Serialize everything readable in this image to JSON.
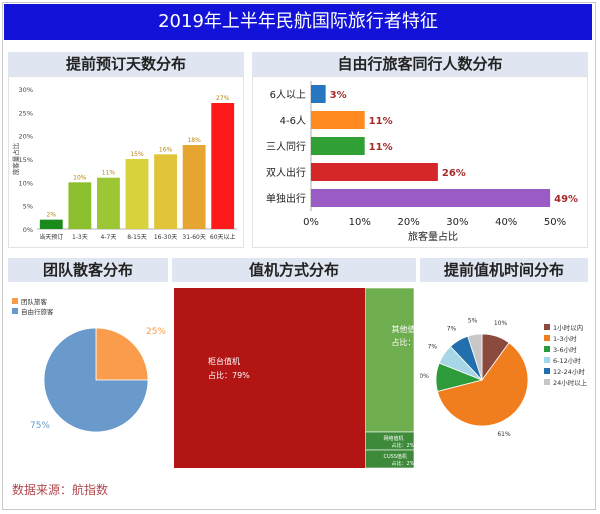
{
  "title": "2019年上半年民航国际旅行者特征",
  "source": "数据来源：航指数",
  "chart_data": [
    {
      "type": "bar",
      "title": "提前预订天数分布",
      "ylabel": "旅客量占比",
      "categories": [
        "当天预订",
        "1-3天",
        "4-7天",
        "8-15天",
        "16-30天",
        "31-60天",
        "60天以上"
      ],
      "values": [
        2,
        10,
        11,
        15,
        16,
        18,
        27
      ],
      "value_labels": [
        "2%",
        "10%",
        "11%",
        "15%",
        "16%",
        "18%",
        "27%"
      ],
      "yticks": [
        "0%",
        "5%",
        "10%",
        "15%",
        "20%",
        "25%",
        "30%"
      ],
      "ylim": [
        0,
        30
      ],
      "colors": [
        "#1a8a1a",
        "#8bbf2e",
        "#9cc634",
        "#d8d23c",
        "#e2c43a",
        "#e6a531",
        "#ff1a1a"
      ]
    },
    {
      "type": "bar",
      "orientation": "horizontal",
      "title": "自由行旅客同行人数分布",
      "xlabel": "旅客量占比",
      "categories": [
        "6人以上",
        "4-6人",
        "三人同行",
        "双人出行",
        "单独出行"
      ],
      "values": [
        3,
        11,
        11,
        26,
        49
      ],
      "value_labels": [
        "3%",
        "11%",
        "11%",
        "26%",
        "49%"
      ],
      "xticks": [
        "0%",
        "10%",
        "20%",
        "30%",
        "40%",
        "50%"
      ],
      "xlim": [
        0,
        50
      ],
      "colors": [
        "#2676c1",
        "#ff8a1f",
        "#31a034",
        "#d62728",
        "#9a5bc4"
      ]
    },
    {
      "type": "pie",
      "title": "团队散客分布",
      "labels": [
        "团队旅客",
        "自由行旅客"
      ],
      "values": [
        25,
        75
      ],
      "value_labels": [
        "25%",
        "75%"
      ],
      "colors": [
        "#f99c4c",
        "#6a99cc"
      ]
    },
    {
      "type": "treemap",
      "title": "值机方式分布",
      "items": [
        {
          "label": "柜台值机",
          "share": "占比：79%",
          "value": 79,
          "color": "#b31414"
        },
        {
          "label": "其他值机方式",
          "share": "占比：16%",
          "value": 16,
          "color": "#6fae4f"
        },
        {
          "label": "网络值机",
          "share": "占比：2%",
          "value": 2,
          "color": "#3e8a3b"
        },
        {
          "label": "CUSS值机",
          "share": "占比：2%",
          "value": 2,
          "color": "#3e8a3b"
        }
      ]
    },
    {
      "type": "pie",
      "title": "提前值机时间分布",
      "labels": [
        "1小时以内",
        "1-3小时",
        "3-6小时",
        "6-12小时",
        "12-24小时",
        "24小时以上"
      ],
      "values": [
        10,
        61,
        10,
        7,
        7,
        5
      ],
      "value_labels": [
        "10%",
        "61%",
        "10%",
        "7%",
        "7%",
        "5%"
      ],
      "colors": [
        "#8b4a3e",
        "#f07d1e",
        "#2e9b3a",
        "#a7d7e6",
        "#236fae",
        "#c7c7c7"
      ]
    }
  ]
}
